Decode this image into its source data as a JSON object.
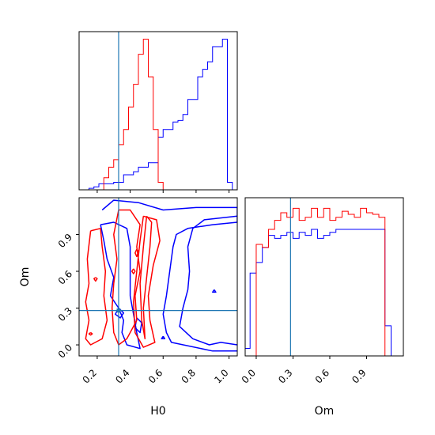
{
  "chart_data": [
    {
      "panel": "H0 marginal",
      "type": "histogram",
      "xlim": [
        0.09,
        1.05
      ],
      "truth_x": 0.33,
      "bin_edges": [
        0.09,
        0.12,
        0.15,
        0.18,
        0.21,
        0.24,
        0.27,
        0.3,
        0.33,
        0.36,
        0.39,
        0.42,
        0.45,
        0.48,
        0.51,
        0.54,
        0.57,
        0.6,
        0.63,
        0.66,
        0.69,
        0.72,
        0.75,
        0.78,
        0.81,
        0.84,
        0.87,
        0.9,
        0.93,
        0.96,
        0.99,
        1.02,
        1.05
      ],
      "series": [
        {
          "color": "#0000ff",
          "values": [
            0,
            0,
            0.01,
            0.02,
            0.04,
            0.04,
            0.04,
            0.05,
            0.05,
            0.1,
            0.1,
            0.12,
            0.15,
            0.15,
            0.18,
            0.18,
            0.35,
            0.4,
            0.4,
            0.45,
            0.46,
            0.5,
            0.6,
            0.6,
            0.75,
            0.8,
            0.85,
            0.95,
            0.95,
            1.0,
            0.05,
            0
          ]
        },
        {
          "color": "#ff0000",
          "values": [
            0,
            0,
            0,
            0,
            0,
            0.08,
            0.15,
            0.2,
            0.3,
            0.4,
            0.55,
            0.7,
            0.9,
            1.0,
            0.75,
            0.4,
            0.05,
            0,
            0,
            0,
            0,
            0,
            0,
            0,
            0,
            0,
            0,
            0,
            0,
            0,
            0,
            0
          ]
        }
      ]
    },
    {
      "panel": "H0 vs Om joint",
      "type": "contour",
      "xlabel": "H0",
      "ylabel": "Om",
      "xlim": [
        0.09,
        1.05
      ],
      "ylim": [
        -0.09,
        1.2
      ],
      "xticks": [
        "0.2",
        "0.4",
        "0.6",
        "0.8",
        "1.0"
      ],
      "yticks": [
        "0.0",
        "0.3",
        "0.6",
        "0.9"
      ],
      "truth": {
        "x": 0.33,
        "y": 0.28
      },
      "series": [
        {
          "color": "#0000ff",
          "name": "",
          "contours": [
            [
              [
                0.23,
                1.1
              ],
              [
                0.3,
                1.18
              ],
              [
                0.45,
                1.16
              ],
              [
                0.6,
                1.1
              ],
              [
                0.8,
                1.12
              ],
              [
                1.05,
                1.12
              ],
              [
                1.05,
                1.0
              ],
              [
                0.9,
                0.98
              ],
              [
                0.75,
                0.95
              ],
              [
                0.68,
                0.9
              ],
              [
                0.66,
                0.8
              ],
              [
                0.64,
                0.6
              ],
              [
                0.62,
                0.4
              ],
              [
                0.6,
                0.25
              ],
              [
                0.62,
                0.1
              ],
              [
                0.65,
                0.02
              ],
              [
                0.9,
                -0.05
              ],
              [
                1.05,
                -0.05
              ]
            ],
            [
              [
                1.05,
                1.05
              ],
              [
                0.85,
                1.02
              ],
              [
                0.78,
                0.95
              ],
              [
                0.75,
                0.8
              ],
              [
                0.76,
                0.6
              ],
              [
                0.75,
                0.45
              ],
              [
                0.72,
                0.3
              ],
              [
                0.7,
                0.15
              ],
              [
                0.78,
                0.05
              ],
              [
                0.88,
                0.0
              ],
              [
                0.95,
                0.02
              ],
              [
                1.05,
                0.0
              ]
            ],
            [
              [
                0.22,
                0.98
              ],
              [
                0.24,
                0.85
              ],
              [
                0.26,
                0.7
              ],
              [
                0.3,
                0.55
              ],
              [
                0.28,
                0.4
              ],
              [
                0.33,
                0.3
              ],
              [
                0.36,
                0.2
              ],
              [
                0.35,
                0.1
              ],
              [
                0.38,
                0.0
              ],
              [
                0.46,
                -0.03
              ],
              [
                0.44,
                0.1
              ],
              [
                0.42,
                0.25
              ],
              [
                0.4,
                0.4
              ],
              [
                0.4,
                0.6
              ],
              [
                0.4,
                0.8
              ],
              [
                0.38,
                0.95
              ],
              [
                0.3,
                1.0
              ],
              [
                0.22,
                0.98
              ]
            ],
            [
              [
                0.33,
                0.3
              ],
              [
                0.36,
                0.26
              ],
              [
                0.34,
                0.22
              ],
              [
                0.31,
                0.25
              ],
              [
                0.33,
                0.3
              ]
            ],
            [
              [
                0.44,
                0.22
              ],
              [
                0.47,
                0.18
              ],
              [
                0.46,
                0.1
              ],
              [
                0.43,
                0.14
              ],
              [
                0.44,
                0.22
              ]
            ],
            [
              [
                0.6,
                0.07
              ],
              [
                0.61,
                0.05
              ],
              [
                0.59,
                0.05
              ],
              [
                0.6,
                0.07
              ]
            ],
            [
              [
                0.91,
                0.45
              ],
              [
                0.92,
                0.43
              ],
              [
                0.9,
                0.43
              ],
              [
                0.91,
                0.45
              ]
            ]
          ]
        },
        {
          "color": "#ff0000",
          "name": "",
          "contours": [
            [
              [
                0.16,
                0.93
              ],
              [
                0.22,
                0.95
              ],
              [
                0.23,
                0.8
              ],
              [
                0.25,
                0.6
              ],
              [
                0.24,
                0.4
              ],
              [
                0.26,
                0.2
              ],
              [
                0.23,
                0.05
              ],
              [
                0.16,
                0.0
              ],
              [
                0.13,
                0.05
              ],
              [
                0.15,
                0.2
              ],
              [
                0.13,
                0.35
              ],
              [
                0.15,
                0.5
              ],
              [
                0.14,
                0.7
              ],
              [
                0.16,
                0.93
              ]
            ],
            [
              [
                0.33,
                1.1
              ],
              [
                0.4,
                1.1
              ],
              [
                0.46,
                0.98
              ],
              [
                0.44,
                0.8
              ],
              [
                0.46,
                0.6
              ],
              [
                0.43,
                0.4
              ],
              [
                0.44,
                0.2
              ],
              [
                0.38,
                0.05
              ],
              [
                0.33,
                0.0
              ],
              [
                0.3,
                0.1
              ],
              [
                0.29,
                0.3
              ],
              [
                0.3,
                0.5
              ],
              [
                0.32,
                0.7
              ],
              [
                0.3,
                0.9
              ],
              [
                0.33,
                1.1
              ]
            ],
            [
              [
                0.48,
                1.05
              ],
              [
                0.56,
                1.02
              ],
              [
                0.58,
                0.85
              ],
              [
                0.54,
                0.65
              ],
              [
                0.51,
                0.4
              ],
              [
                0.52,
                0.2
              ],
              [
                0.55,
                0.02
              ],
              [
                0.48,
                -0.02
              ],
              [
                0.43,
                0.1
              ],
              [
                0.42,
                0.35
              ],
              [
                0.44,
                0.6
              ],
              [
                0.46,
                0.85
              ],
              [
                0.48,
                1.05
              ]
            ],
            [
              [
                0.5,
                1.05
              ],
              [
                0.53,
                1.0
              ],
              [
                0.52,
                0.8
              ],
              [
                0.5,
                0.55
              ],
              [
                0.48,
                0.3
              ],
              [
                0.49,
                0.05
              ],
              [
                0.47,
                0.2
              ],
              [
                0.46,
                0.5
              ],
              [
                0.48,
                0.8
              ],
              [
                0.5,
                1.05
              ]
            ],
            [
              [
                0.44,
                0.78
              ],
              [
                0.45,
                0.76
              ],
              [
                0.44,
                0.72
              ],
              [
                0.43,
                0.75
              ],
              [
                0.44,
                0.78
              ]
            ],
            [
              [
                0.42,
                0.62
              ],
              [
                0.43,
                0.6
              ],
              [
                0.42,
                0.58
              ],
              [
                0.41,
                0.6
              ],
              [
                0.42,
                0.62
              ]
            ],
            [
              [
                0.19,
                0.55
              ],
              [
                0.2,
                0.54
              ],
              [
                0.19,
                0.52
              ],
              [
                0.18,
                0.54
              ],
              [
                0.19,
                0.55
              ]
            ],
            [
              [
                0.16,
                0.1
              ],
              [
                0.17,
                0.09
              ],
              [
                0.16,
                0.08
              ],
              [
                0.15,
                0.09
              ],
              [
                0.16,
                0.1
              ]
            ]
          ]
        }
      ]
    },
    {
      "panel": "Om marginal",
      "type": "histogram",
      "xlabel": "Om",
      "xlim": [
        -0.09,
        1.2
      ],
      "xticks": [
        "0.0",
        "0.3",
        "0.6",
        "0.9"
      ],
      "truth_x": 0.28,
      "bin_edges": [
        -0.09,
        -0.05,
        0.0,
        0.05,
        0.1,
        0.15,
        0.2,
        0.25,
        0.3,
        0.35,
        0.4,
        0.45,
        0.5,
        0.55,
        0.6,
        0.65,
        0.7,
        0.75,
        0.8,
        0.85,
        0.9,
        0.95,
        1.0,
        1.05,
        1.1,
        1.15,
        1.2
      ],
      "series": [
        {
          "color": "#0000ff",
          "values": [
            0.05,
            0.55,
            0.62,
            0.72,
            0.8,
            0.78,
            0.8,
            0.82,
            0.78,
            0.82,
            0.8,
            0.84,
            0.78,
            0.8,
            0.82,
            0.84,
            0.84,
            0.84,
            0.84,
            0.84,
            0.84,
            0.84,
            0.84,
            0.2,
            0,
            0
          ]
        },
        {
          "color": "#ff0000",
          "values": [
            0,
            0,
            0.74,
            0.72,
            0.84,
            0.9,
            0.95,
            0.92,
            0.98,
            0.9,
            0.92,
            0.98,
            0.92,
            0.98,
            0.9,
            0.92,
            0.96,
            0.94,
            0.92,
            0.98,
            0.95,
            0.94,
            0.92,
            0,
            0,
            0
          ]
        }
      ]
    }
  ]
}
